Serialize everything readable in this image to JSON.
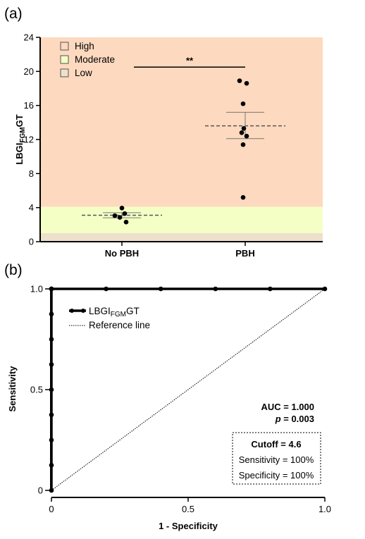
{
  "chart_data": [
    {
      "panel_label": "(a)",
      "type": "scatter",
      "ylabel_main": "LBGI",
      "ylabel_sub": "FGM",
      "ylabel_end": "GT",
      "ylim": [
        0,
        24
      ],
      "yticks": [
        "0",
        "4",
        "8",
        "12",
        "16",
        "20",
        "24"
      ],
      "categories": [
        "No PBH",
        "PBH"
      ],
      "zones": [
        {
          "name": "High",
          "from": 4.1,
          "to": 24,
          "color": "#fdd9bf"
        },
        {
          "name": "Moderate",
          "from": 1.0,
          "to": 4.1,
          "color": "#f4ffc6"
        },
        {
          "name": "Low",
          "from": 0,
          "to": 1.0,
          "color": "#ede1cb"
        }
      ],
      "legend": [
        "High",
        "Moderate",
        "Low"
      ],
      "groups": [
        {
          "name": "No PBH",
          "points": [
            3.95,
            3.3,
            3.05,
            2.85,
            2.3
          ],
          "mean": 3.1,
          "sem_low": 2.8,
          "sem_high": 3.4
        },
        {
          "name": "PBH",
          "points": [
            18.9,
            18.6,
            16.2,
            13.3,
            12.8,
            12.4,
            11.4,
            5.2
          ],
          "mean": 13.6,
          "sem_low": 12.1,
          "sem_high": 15.2
        }
      ],
      "significance": {
        "label": "**",
        "y": 20.5
      }
    },
    {
      "panel_label": "(b)",
      "type": "line",
      "xlabel": "1 - Specificity",
      "ylabel": "Sensitivity",
      "xlim": [
        0,
        1
      ],
      "ylim": [
        0,
        1
      ],
      "xticks": [
        "0",
        "0.5",
        "1.0"
      ],
      "yticks": [
        "0",
        "0.5",
        "1.0"
      ],
      "series": [
        {
          "name_main": "LBGI",
          "name_sub": "FGM",
          "name_end": "GT",
          "x": [
            0,
            0,
            0,
            0,
            0,
            0,
            0,
            0,
            0,
            0,
            0,
            0,
            0.2,
            0.4,
            0.6,
            0.8,
            1.0
          ],
          "y": [
            0,
            0.125,
            0.25,
            0.375,
            0.5,
            0.625,
            0.75,
            0.875,
            1.0,
            1.0,
            1.0,
            1.0,
            1.0,
            1.0,
            1.0,
            1.0,
            1.0
          ]
        }
      ],
      "reference_line": {
        "name": "Reference line",
        "x": [
          0,
          1
        ],
        "y": [
          0,
          1
        ]
      },
      "auc_text": "AUC = 1.000",
      "p_label": "p",
      "p_rest": " = 0.003",
      "box": {
        "cutoff": "Cutoff = 4.6",
        "sensitivity": "Sensitivity = 100%",
        "specificity": "Specificity = 100%"
      }
    }
  ]
}
